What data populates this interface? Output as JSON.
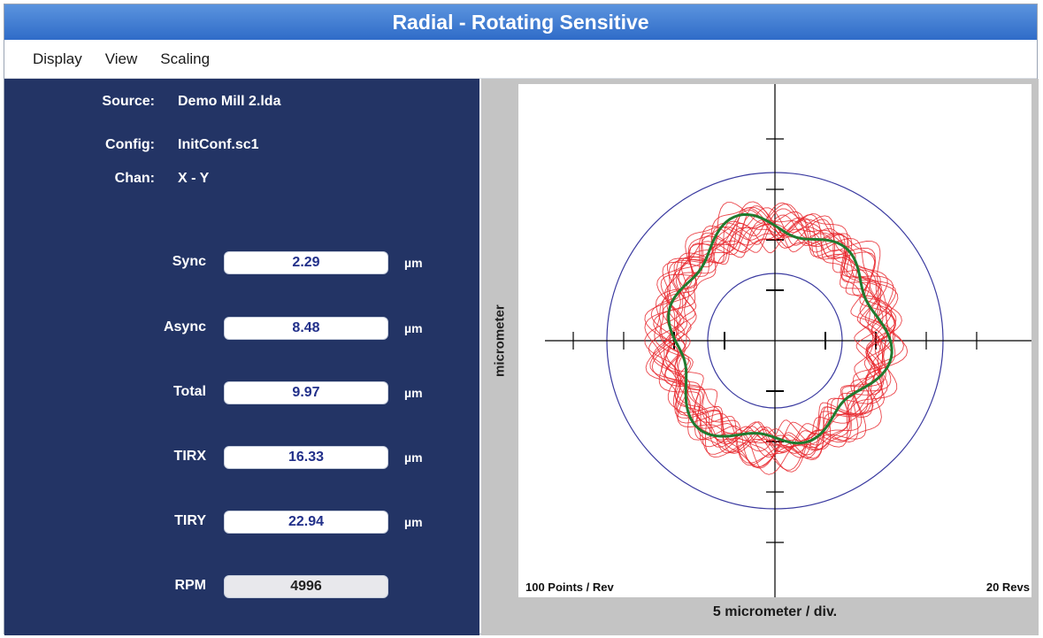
{
  "window": {
    "title": "Radial - Rotating Sensitive"
  },
  "menu": {
    "items": [
      "Display",
      "View",
      "Scaling"
    ]
  },
  "info": {
    "source_label": "Source:",
    "source_value": "Demo Mill 2.lda",
    "config_label": "Config:",
    "config_value": "InitConf.sc1",
    "chan_label": "Chan:",
    "chan_value": "X - Y"
  },
  "measurements": [
    {
      "label": "Sync",
      "value": "2.29",
      "unit": "µm"
    },
    {
      "label": "Async",
      "value": "8.48",
      "unit": "µm"
    },
    {
      "label": "Total",
      "value": "9.97",
      "unit": "µm"
    },
    {
      "label": "TIRX",
      "value": "16.33",
      "unit": "µm"
    },
    {
      "label": "TIRY",
      "value": "22.94",
      "unit": "µm"
    },
    {
      "label": "RPM",
      "value": "4996",
      "unit": ""
    }
  ],
  "plot": {
    "ylabel": "micrometer",
    "xlabel": "5 micrometer / div.",
    "points_per_rev": "100 Points / Rev",
    "revs": "20 Revs",
    "colors": {
      "raw": "#e8262b",
      "sync": "#1f7a2e",
      "circle": "#3a3aa0",
      "axis": "#000000"
    }
  }
}
